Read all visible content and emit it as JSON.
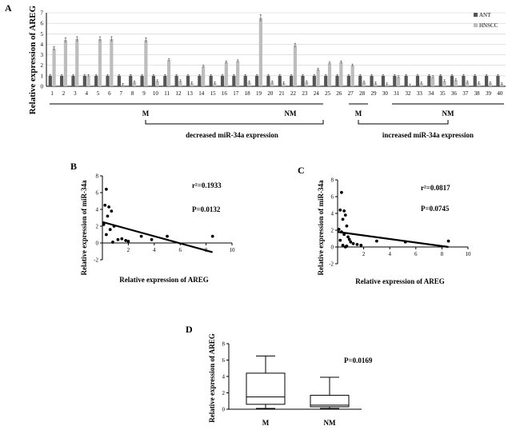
{
  "figure": {
    "panels": [
      "A",
      "B",
      "C",
      "D"
    ]
  },
  "chart_data": [
    {
      "id": "A",
      "type": "bar",
      "panel_label": "A",
      "ylabel": "Relative expression of AREG",
      "ylim": [
        0,
        7
      ],
      "yticks": [
        "0",
        "1",
        "2",
        "3",
        "4",
        "5",
        "6",
        "7"
      ],
      "grid": true,
      "legend_position": "top-right",
      "categories": [
        "1",
        "2",
        "3",
        "4",
        "5",
        "6",
        "7",
        "8",
        "9",
        "10",
        "11",
        "12",
        "13",
        "14",
        "15",
        "16",
        "17",
        "18",
        "19",
        "20",
        "21",
        "22",
        "23",
        "24",
        "25",
        "26",
        "27",
        "28",
        "29",
        "30",
        "31",
        "32",
        "33",
        "34",
        "35",
        "36",
        "37",
        "38",
        "39",
        "40"
      ],
      "series": [
        {
          "name": "ANT",
          "color": "#555555",
          "values": [
            1,
            1,
            1,
            1,
            1,
            1,
            1,
            1,
            1,
            1,
            1,
            1,
            1,
            1,
            1,
            1,
            1,
            1,
            1,
            1,
            1,
            1,
            1,
            1,
            1,
            1,
            1,
            1,
            1,
            1,
            1,
            1,
            1,
            1,
            1,
            1,
            1,
            1,
            1,
            1
          ]
        },
        {
          "name": "HNSCC",
          "color": "#bdbdbd",
          "values": [
            3.6,
            4.4,
            4.5,
            1.0,
            4.5,
            4.5,
            0.15,
            0.4,
            4.4,
            0.5,
            2.5,
            0.5,
            0.3,
            1.9,
            0.3,
            2.3,
            2.4,
            0.4,
            6.5,
            0.4,
            0.3,
            3.9,
            0.4,
            1.6,
            2.2,
            2.3,
            2.0,
            0.4,
            0.3,
            0.2,
            0.9,
            0.1,
            0.3,
            0.9,
            0.5,
            0.6,
            0.4,
            0.3,
            0.3,
            0.2
          ]
        }
      ],
      "groups": [
        {
          "label": "M",
          "from": 1,
          "to": 19
        },
        {
          "label": "NM",
          "from": 20,
          "to": 29
        },
        {
          "label": "M",
          "from": 30,
          "to": 31
        },
        {
          "label": "NM",
          "from": 33,
          "to": 40
        }
      ],
      "annotations": [
        "decreased miR-34a expression",
        "increased miR-34a expression"
      ]
    },
    {
      "id": "B",
      "type": "scatter",
      "panel_label": "B",
      "xlabel": "Relative expression of AREG",
      "ylabel": "Relative expression of miR-34a",
      "xlim": [
        0,
        10
      ],
      "ylim": [
        -2,
        8
      ],
      "xticks": [
        "2",
        "4",
        "6",
        "8",
        "10"
      ],
      "yticks": [
        "-2",
        "0",
        "2",
        "4",
        "6",
        "8"
      ],
      "stats": [
        "r²=0.1933",
        "P=0.0132"
      ],
      "points": [
        [
          0.3,
          6.4
        ],
        [
          0.2,
          4.5
        ],
        [
          0.5,
          4.3
        ],
        [
          0.7,
          3.8
        ],
        [
          0.4,
          3.2
        ],
        [
          0.9,
          2.0
        ],
        [
          0.1,
          2.2
        ],
        [
          0.6,
          1.6
        ],
        [
          0.3,
          1.0
        ],
        [
          1.2,
          0.4
        ],
        [
          1.5,
          0.5
        ],
        [
          1.8,
          0.3
        ],
        [
          2.0,
          0.2
        ],
        [
          3.0,
          0.8
        ],
        [
          3.8,
          0.4
        ],
        [
          5.0,
          0.8
        ],
        [
          8.5,
          0.8
        ],
        [
          0.8,
          0.1
        ]
      ],
      "fit": {
        "x": [
          0,
          8.5
        ],
        "y": [
          2.5,
          -1.1
        ]
      }
    },
    {
      "id": "C",
      "type": "scatter",
      "panel_label": "C",
      "xlabel": "Relative expression of AREG",
      "ylabel": "Relative expression of miR-34a",
      "xlim": [
        0,
        10
      ],
      "ylim": [
        -2,
        8
      ],
      "xticks": [
        "2",
        "4",
        "6",
        "8",
        "10"
      ],
      "yticks": [
        "-2",
        "0",
        "2",
        "4",
        "6",
        "8"
      ],
      "stats": [
        "r²=0.0817",
        "P=0.0745"
      ],
      "points": [
        [
          0.3,
          6.5
        ],
        [
          0.2,
          4.4
        ],
        [
          0.5,
          4.3
        ],
        [
          0.6,
          3.8
        ],
        [
          0.4,
          3.3
        ],
        [
          0.7,
          2.5
        ],
        [
          0.1,
          2.1
        ],
        [
          0.3,
          1.8
        ],
        [
          0.5,
          1.5
        ],
        [
          0.8,
          1.2
        ],
        [
          0.2,
          0.8
        ],
        [
          1.0,
          0.6
        ],
        [
          1.2,
          0.4
        ],
        [
          1.5,
          0.3
        ],
        [
          0.4,
          0.2
        ],
        [
          0.7,
          0.1
        ],
        [
          1.8,
          0.2
        ],
        [
          0.9,
          0.9
        ],
        [
          3.0,
          0.7
        ],
        [
          5.2,
          0.6
        ],
        [
          8.5,
          0.7
        ],
        [
          0.6,
          0.0
        ]
      ],
      "fit": {
        "x": [
          0,
          8.5
        ],
        "y": [
          1.8,
          0.0
        ]
      }
    },
    {
      "id": "D",
      "type": "box",
      "panel_label": "D",
      "ylabel": "Relative expression of AREG",
      "ylim": [
        0,
        8
      ],
      "yticks": [
        "0",
        "2",
        "4",
        "6",
        "8"
      ],
      "stats": [
        "P=0.0169"
      ],
      "categories": [
        "M",
        "NM"
      ],
      "boxes": [
        {
          "label": "M",
          "min": 0.1,
          "q1": 0.6,
          "median": 1.5,
          "q3": 4.4,
          "max": 6.5
        },
        {
          "label": "NM",
          "min": 0.1,
          "q1": 0.3,
          "median": 0.5,
          "q3": 1.7,
          "max": 3.9
        }
      ]
    }
  ]
}
